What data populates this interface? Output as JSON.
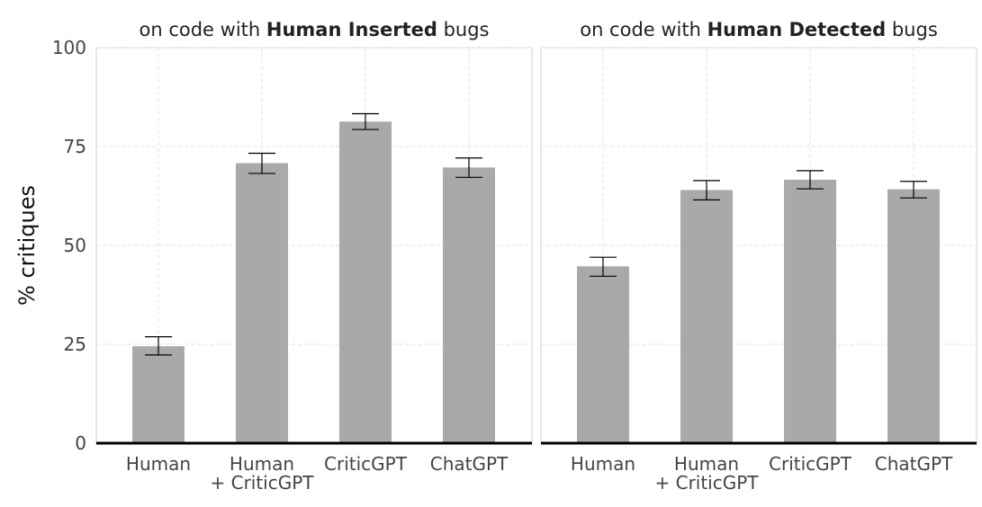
{
  "chart_data": {
    "type": "bar",
    "ylabel": "% critiques",
    "ylim": [
      0,
      100
    ],
    "yticks": [
      0,
      25,
      50,
      75,
      100
    ],
    "bar_color": "#a9a9a9",
    "categories": [
      [
        "Human"
      ],
      [
        "Human",
        "+ CriticGPT"
      ],
      [
        "CriticGPT"
      ],
      [
        "ChatGPT"
      ]
    ],
    "panels": [
      {
        "title_prefix": "on code with ",
        "title_bold": "Human Inserted",
        "title_suffix": " bugs",
        "values": [
          24.5,
          70.8,
          81.3,
          69.7
        ],
        "err_low": [
          22.3,
          68.2,
          79.3,
          67.2
        ],
        "err_high": [
          26.9,
          73.3,
          83.3,
          72.1
        ]
      },
      {
        "title_prefix": "on code with ",
        "title_bold": "Human Detected",
        "title_suffix": " bugs",
        "values": [
          44.7,
          64.0,
          66.6,
          64.2
        ],
        "err_low": [
          42.2,
          61.5,
          64.3,
          62.0
        ],
        "err_high": [
          47.0,
          66.4,
          68.9,
          66.2
        ]
      }
    ]
  }
}
